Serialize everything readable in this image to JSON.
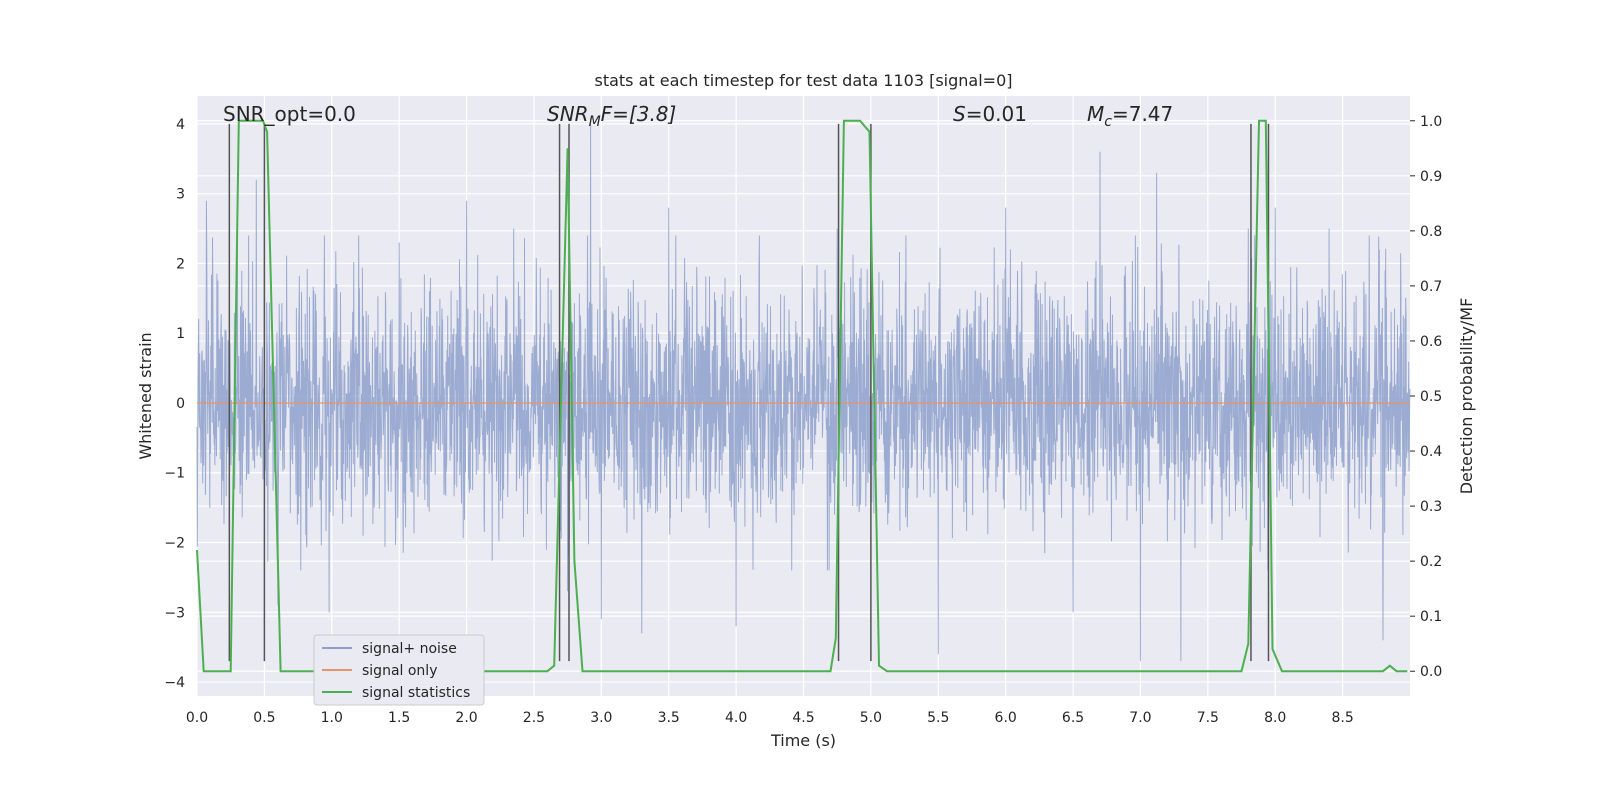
{
  "chart_data": {
    "type": "line",
    "title": "stats at each timestep for test data 1103 [signal=0]",
    "xlabel": "Time (s)",
    "ylabel": "Whitened strain",
    "y2label": "Detection probability/MF",
    "xlim": [
      0.0,
      9.0
    ],
    "ylim": [
      -4.2,
      4.4
    ],
    "y2lim": [
      -0.045,
      1.045
    ],
    "xticks": [
      "0.0",
      "0.5",
      "1.0",
      "1.5",
      "2.0",
      "2.5",
      "3.0",
      "3.5",
      "4.0",
      "4.5",
      "5.0",
      "5.5",
      "6.0",
      "6.5",
      "7.0",
      "7.5",
      "8.0",
      "8.5"
    ],
    "yticks": [
      "−4",
      "−3",
      "−2",
      "−1",
      "0",
      "1",
      "2",
      "3",
      "4"
    ],
    "y2ticks": [
      "0.0",
      "0.1",
      "0.2",
      "0.3",
      "0.4",
      "0.5",
      "0.6",
      "0.7",
      "0.8",
      "0.9",
      "1.0"
    ],
    "grid": true,
    "legend_position": "lower-left",
    "annotations": {
      "snr_opt": "SNR_opt=0.0",
      "snr_mf_name": "SNR",
      "snr_mf_sub": "M",
      "snr_mf_rest": "F=[3.8]",
      "s_name": "S",
      "s_rest": "=0.01",
      "mc_name": "M",
      "mc_sub": "c",
      "mc_rest": "=7.47"
    },
    "series": [
      {
        "name": "signal+ noise",
        "color": "#8da0cb",
        "description_range": [
          -3.8,
          4.0
        ],
        "peaks": [
          [
            0.07,
            2.9
          ],
          [
            0.3,
            2.5
          ],
          [
            0.44,
            3.2
          ],
          [
            0.5,
            2.6
          ],
          [
            0.6,
            -2.9
          ],
          [
            0.98,
            -3.0
          ],
          [
            1.2,
            2.4
          ],
          [
            1.5,
            2.3
          ],
          [
            2.0,
            2.9
          ],
          [
            2.35,
            2.5
          ],
          [
            2.75,
            -2.7
          ],
          [
            2.92,
            4.0
          ],
          [
            3.0,
            -3.1
          ],
          [
            3.3,
            -3.3
          ],
          [
            3.5,
            2.8
          ],
          [
            4.0,
            -3.2
          ],
          [
            4.75,
            2.5
          ],
          [
            5.0,
            2.9
          ],
          [
            5.5,
            -3.6
          ],
          [
            6.0,
            2.8
          ],
          [
            6.5,
            -3.0
          ],
          [
            6.7,
            3.6
          ],
          [
            7.0,
            -3.7
          ],
          [
            7.12,
            3.3
          ],
          [
            7.3,
            -3.7
          ],
          [
            7.8,
            2.5
          ],
          [
            8.0,
            2.8
          ],
          [
            8.4,
            2.5
          ],
          [
            8.8,
            -3.4
          ]
        ]
      },
      {
        "name": "signal only",
        "color": "#e5936b",
        "values_note": "flat at 0",
        "x": [
          0.0,
          9.0
        ],
        "y": [
          0.0,
          0.0
        ]
      },
      {
        "name": "signal statistics",
        "color": "#4caf50",
        "axis": "right",
        "x": [
          0.0,
          0.05,
          0.25,
          0.31,
          0.49,
          0.52,
          0.62,
          2.6,
          2.65,
          2.75,
          2.8,
          2.86,
          4.7,
          4.74,
          4.8,
          4.92,
          4.99,
          5.06,
          5.12,
          7.75,
          7.8,
          7.88,
          7.93,
          7.98,
          8.05,
          8.8,
          8.85,
          8.9,
          8.98
        ],
        "y": [
          0.22,
          0.0,
          0.0,
          1.0,
          1.0,
          0.98,
          0.0,
          0.0,
          0.01,
          0.95,
          0.2,
          0.0,
          0.0,
          0.06,
          1.0,
          1.0,
          0.98,
          0.01,
          0.0,
          0.0,
          0.05,
          1.0,
          1.0,
          0.04,
          0.0,
          0.0,
          0.01,
          0.0,
          0.0
        ]
      }
    ],
    "vertical_markers": [
      {
        "x": 0.24,
        "y_top": 4.0,
        "y_bottom": -3.7
      },
      {
        "x": 0.5,
        "y_top": 4.0,
        "y_bottom": -3.7
      },
      {
        "x": 2.69,
        "y_top": 4.0,
        "y_bottom": -3.7
      },
      {
        "x": 2.76,
        "y_top": 4.0,
        "y_bottom": -3.7
      },
      {
        "x": 4.76,
        "y_top": 4.0,
        "y_bottom": -3.7
      },
      {
        "x": 5.0,
        "y_top": 4.0,
        "y_bottom": -3.7
      },
      {
        "x": 7.82,
        "y_top": 4.0,
        "y_bottom": -3.7
      },
      {
        "x": 7.95,
        "y_top": 4.0,
        "y_bottom": -3.7
      }
    ]
  }
}
